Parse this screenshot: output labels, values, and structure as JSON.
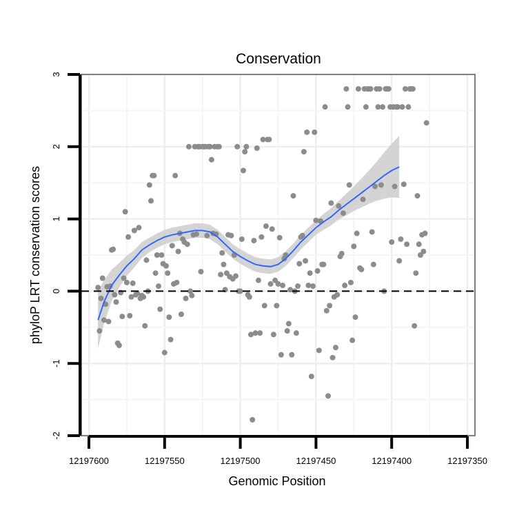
{
  "chart_data": {
    "type": "scatter",
    "title": "Conservation",
    "xlabel": "Genomic Position",
    "ylabel": "phyloP LRT conservation scores",
    "x_reversed": true,
    "xlim": [
      12197605,
      12197345
    ],
    "ylim": [
      -2,
      3
    ],
    "x_ticks": [
      12197600,
      12197550,
      12197500,
      12197450,
      12197400,
      12197350
    ],
    "x_tick_labels": [
      "12197600",
      "12197550",
      "12197500",
      "12197450",
      "12197400",
      "12197350"
    ],
    "y_ticks": [
      -2,
      -1,
      0,
      1,
      2,
      3
    ],
    "y_tick_labels": [
      "-2",
      "-1",
      "0",
      "1",
      "2",
      "3"
    ],
    "grid": true,
    "reference_line": {
      "y": 0,
      "style": "dashed"
    },
    "point_color": "#8c8c8c",
    "smooth_color": "#3366ff",
    "band_color": "#cccccc",
    "panel_color": "#ebebeb",
    "points": [
      [
        12197594,
        0.05
      ],
      [
        12197593,
        -0.55
      ],
      [
        12197592,
        -0.1
      ],
      [
        12197591,
        0.18
      ],
      [
        12197590,
        -0.4
      ],
      [
        12197589,
        -0.18
      ],
      [
        12197588,
        0.06
      ],
      [
        12197587,
        -0.42
      ],
      [
        12197586,
        0.07
      ],
      [
        12197585,
        0.57
      ],
      [
        12197584,
        0.58
      ],
      [
        12197583,
        -0.05
      ],
      [
        12197582,
        -0.15
      ],
      [
        12197581,
        -0.72
      ],
      [
        12197580,
        -0.75
      ],
      [
        12197579,
        -0.02
      ],
      [
        12197578,
        -0.35
      ],
      [
        12197577,
        0.18
      ],
      [
        12197576,
        1.1
      ],
      [
        12197575,
        0.12
      ],
      [
        12197574,
        0.75
      ],
      [
        12197573,
        -0.34
      ],
      [
        12197572,
        -0.08
      ],
      [
        12197571,
        0.11
      ],
      [
        12197570,
        0.84
      ],
      [
        12197569,
        -0.05
      ],
      [
        12197568,
        -0.03
      ],
      [
        12197567,
        0.88
      ],
      [
        12197566,
        -0.1
      ],
      [
        12197565,
        -0.06
      ],
      [
        12197564,
        -0.08
      ],
      [
        12197563,
        -0.48
      ],
      [
        12197562,
        0.43
      ],
      [
        12197561,
        0.0
      ],
      [
        12197560,
        1.47
      ],
      [
        12197559,
        1.25
      ],
      [
        12197558,
        1.6
      ],
      [
        12197557,
        1.6
      ],
      [
        12197556,
        0.25
      ],
      [
        12197555,
        0.5
      ],
      [
        12197554,
        0.07
      ],
      [
        12197553,
        -0.25
      ],
      [
        12197552,
        0.5
      ],
      [
        12197551,
        0.38
      ],
      [
        12197550,
        -0.85
      ],
      [
        12197549,
        0.35
      ],
      [
        12197548,
        0.25
      ],
      [
        12197547,
        -0.36
      ],
      [
        12197546,
        -0.67
      ],
      [
        12197545,
        0.63
      ],
      [
        12197544,
        0.1
      ],
      [
        12197543,
        1.6
      ],
      [
        12197542,
        0.12
      ],
      [
        12197541,
        0.55
      ],
      [
        12197540,
        0.8
      ],
      [
        12197539,
        -0.32
      ],
      [
        12197538,
        0.72
      ],
      [
        12197537,
        0.68
      ],
      [
        12197536,
        -0.1
      ],
      [
        12197535,
        0.65
      ],
      [
        12197534,
        2.0
      ],
      [
        12197533,
        0.0
      ],
      [
        12197532,
        -0.06
      ],
      [
        12197531,
        0.78
      ],
      [
        12197530,
        2.0
      ],
      [
        12197529,
        0.79
      ],
      [
        12197528,
        2.0
      ],
      [
        12197527,
        2.0
      ],
      [
        12197526,
        0.27
      ],
      [
        12197525,
        2.0
      ],
      [
        12197524,
        2.0
      ],
      [
        12197523,
        2.0
      ],
      [
        12197522,
        0.77
      ],
      [
        12197521,
        2.0
      ],
      [
        12197520,
        2.0
      ],
      [
        12197519,
        1.82
      ],
      [
        12197518,
        0.8
      ],
      [
        12197517,
        2.0
      ],
      [
        12197516,
        0.79
      ],
      [
        12197515,
        2.0
      ],
      [
        12197514,
        2.0
      ],
      [
        12197513,
        0.23
      ],
      [
        12197512,
        0.53
      ],
      [
        12197511,
        0.37
      ],
      [
        12197510,
        0.02
      ],
      [
        12197509,
        0.25
      ],
      [
        12197508,
        0.78
      ],
      [
        12197507,
        0.2
      ],
      [
        12197506,
        0.77
      ],
      [
        12197505,
        0.17
      ],
      [
        12197504,
        0.5
      ],
      [
        12197503,
        0.21
      ],
      [
        12197502,
        2.0
      ],
      [
        12197501,
        0.0
      ],
      [
        12197500,
        0.0
      ],
      [
        12197499,
        0.72
      ],
      [
        12197498,
        1.67
      ],
      [
        12197497,
        1.93
      ],
      [
        12197496,
        2.0
      ],
      [
        12197495,
        -0.05
      ],
      [
        12197494,
        -0.08
      ],
      [
        12197493,
        -0.6
      ],
      [
        12197492,
        -1.78
      ],
      [
        12197491,
        0.7
      ],
      [
        12197490,
        -0.58
      ],
      [
        12197489,
        1.98
      ],
      [
        12197488,
        0.15
      ],
      [
        12197487,
        -0.58
      ],
      [
        12197486,
        0.75
      ],
      [
        12197485,
        2.1
      ],
      [
        12197484,
        -0.2
      ],
      [
        12197483,
        0.9
      ],
      [
        12197482,
        2.1
      ],
      [
        12197481,
        2.1
      ],
      [
        12197480,
        0.1
      ],
      [
        12197479,
        0.86
      ],
      [
        12197478,
        -0.6
      ],
      [
        12197477,
        0.15
      ],
      [
        12197476,
        -0.2
      ],
      [
        12197475,
        0.1
      ],
      [
        12197474,
        0.74
      ],
      [
        12197473,
        -0.88
      ],
      [
        12197472,
        0.08
      ],
      [
        12197471,
        0.45
      ],
      [
        12197470,
        0.5
      ],
      [
        12197469,
        -0.55
      ],
      [
        12197468,
        -0.45
      ],
      [
        12197467,
        0.02
      ],
      [
        12197466,
        -0.88
      ],
      [
        12197465,
        1.32
      ],
      [
        12197464,
        0.0
      ],
      [
        12197463,
        -0.58
      ],
      [
        12197462,
        0.07
      ],
      [
        12197461,
        0.38
      ],
      [
        12197460,
        0.75
      ],
      [
        12197459,
        0.77
      ],
      [
        12197458,
        1.93
      ],
      [
        12197457,
        0.42
      ],
      [
        12197456,
        2.2
      ],
      [
        12197455,
        0.08
      ],
      [
        12197454,
        0.25
      ],
      [
        12197453,
        -1.18
      ],
      [
        12197452,
        0.07
      ],
      [
        12197451,
        2.2
      ],
      [
        12197450,
        0.98
      ],
      [
        12197449,
        0.28
      ],
      [
        12197448,
        -0.82
      ],
      [
        12197447,
        0.97
      ],
      [
        12197446,
        0.37
      ],
      [
        12197445,
        0.37
      ],
      [
        12197444,
        2.55
      ],
      [
        12197443,
        -0.27
      ],
      [
        12197442,
        -1.45
      ],
      [
        12197441,
        -0.2
      ],
      [
        12197440,
        1.22
      ],
      [
        12197439,
        -0.92
      ],
      [
        12197438,
        -0.08
      ],
      [
        12197437,
        -0.78
      ],
      [
        12197436,
        -0.05
      ],
      [
        12197435,
        1.18
      ],
      [
        12197434,
        0.48
      ],
      [
        12197433,
        0.52
      ],
      [
        12197432,
        1.08
      ],
      [
        12197431,
        0.08
      ],
      [
        12197430,
        2.8
      ],
      [
        12197429,
        2.55
      ],
      [
        12197428,
        1.47
      ],
      [
        12197427,
        0.12
      ],
      [
        12197426,
        -0.68
      ],
      [
        12197425,
        0.62
      ],
      [
        12197424,
        -0.36
      ],
      [
        12197423,
        0.8
      ],
      [
        12197422,
        2.8
      ],
      [
        12197421,
        0.32
      ],
      [
        12197420,
        0.3
      ],
      [
        12197419,
        1.27
      ],
      [
        12197418,
        2.8
      ],
      [
        12197417,
        2.55
      ],
      [
        12197416,
        2.8
      ],
      [
        12197415,
        2.8
      ],
      [
        12197414,
        2.8
      ],
      [
        12197413,
        0.82
      ],
      [
        12197412,
        0.37
      ],
      [
        12197411,
        1.45
      ],
      [
        12197410,
        2.8
      ],
      [
        12197409,
        2.55
      ],
      [
        12197408,
        2.8
      ],
      [
        12197407,
        1.47
      ],
      [
        12197406,
        2.55
      ],
      [
        12197405,
        0.0
      ],
      [
        12197404,
        2.8
      ],
      [
        12197403,
        2.8
      ],
      [
        12197402,
        2.8
      ],
      [
        12197401,
        2.55
      ],
      [
        12197400,
        0.68
      ],
      [
        12197399,
        2.55
      ],
      [
        12197398,
        1.45
      ],
      [
        12197397,
        2.55
      ],
      [
        12197396,
        2.55
      ],
      [
        12197395,
        0.42
      ],
      [
        12197394,
        0.72
      ],
      [
        12197393,
        2.55
      ],
      [
        12197392,
        1.48
      ],
      [
        12197391,
        2.8
      ],
      [
        12197390,
        0.65
      ],
      [
        12197389,
        2.55
      ],
      [
        12197388,
        2.8
      ],
      [
        12197387,
        2.8
      ],
      [
        12197386,
        2.8
      ],
      [
        12197385,
        -0.48
      ],
      [
        12197384,
        0.25
      ],
      [
        12197383,
        1.32
      ],
      [
        12197382,
        0.65
      ],
      [
        12197381,
        0.5
      ],
      [
        12197380,
        0.78
      ],
      [
        12197379,
        0.55
      ],
      [
        12197378,
        0.8
      ],
      [
        12197377,
        2.33
      ]
    ],
    "smooth": [
      [
        12197594,
        -0.4
      ],
      [
        12197590,
        -0.15
      ],
      [
        12197585,
        0.08
      ],
      [
        12197580,
        0.22
      ],
      [
        12197575,
        0.35
      ],
      [
        12197570,
        0.45
      ],
      [
        12197565,
        0.57
      ],
      [
        12197560,
        0.64
      ],
      [
        12197555,
        0.7
      ],
      [
        12197550,
        0.75
      ],
      [
        12197545,
        0.78
      ],
      [
        12197540,
        0.8
      ],
      [
        12197535,
        0.82
      ],
      [
        12197530,
        0.84
      ],
      [
        12197525,
        0.84
      ],
      [
        12197520,
        0.82
      ],
      [
        12197515,
        0.75
      ],
      [
        12197510,
        0.65
      ],
      [
        12197505,
        0.55
      ],
      [
        12197500,
        0.48
      ],
      [
        12197495,
        0.42
      ],
      [
        12197490,
        0.37
      ],
      [
        12197485,
        0.35
      ],
      [
        12197480,
        0.34
      ],
      [
        12197475,
        0.37
      ],
      [
        12197470,
        0.45
      ],
      [
        12197465,
        0.56
      ],
      [
        12197460,
        0.68
      ],
      [
        12197455,
        0.78
      ],
      [
        12197450,
        0.88
      ],
      [
        12197445,
        0.96
      ],
      [
        12197440,
        1.03
      ],
      [
        12197435,
        1.12
      ],
      [
        12197430,
        1.2
      ],
      [
        12197425,
        1.28
      ],
      [
        12197420,
        1.36
      ],
      [
        12197415,
        1.44
      ],
      [
        12197410,
        1.52
      ],
      [
        12197405,
        1.6
      ],
      [
        12197400,
        1.67
      ],
      [
        12197395,
        1.72
      ]
    ],
    "band_halfwidth": [
      0.4,
      0.3,
      0.22,
      0.17,
      0.14,
      0.12,
      0.11,
      0.1,
      0.1,
      0.1,
      0.1,
      0.1,
      0.1,
      0.1,
      0.1,
      0.1,
      0.1,
      0.1,
      0.1,
      0.1,
      0.1,
      0.1,
      0.1,
      0.1,
      0.1,
      0.1,
      0.1,
      0.1,
      0.1,
      0.1,
      0.11,
      0.12,
      0.13,
      0.15,
      0.17,
      0.2,
      0.23,
      0.27,
      0.32,
      0.37,
      0.43
    ]
  }
}
